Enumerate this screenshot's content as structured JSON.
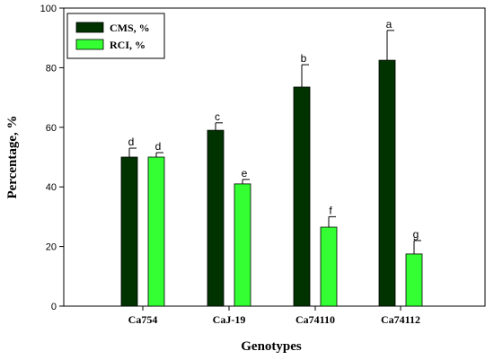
{
  "chart_data": {
    "type": "bar",
    "xlabel": "Genotypes",
    "ylabel": "Percentage, %",
    "ylim": [
      0,
      100
    ],
    "yticks": [
      0,
      20,
      40,
      60,
      80,
      100
    ],
    "categories": [
      "Ca754",
      "CaJ-19",
      "Ca74110",
      "Ca74112"
    ],
    "series": [
      {
        "name": "CMS, %",
        "color": "#003300",
        "values": [
          50,
          59,
          73.5,
          82.5
        ],
        "errors": [
          3,
          2.5,
          7.5,
          10
        ],
        "labels": [
          "d",
          "c",
          "b",
          "a"
        ]
      },
      {
        "name": "RCI, %",
        "color": "#33ff33",
        "values": [
          50,
          41,
          26.5,
          17.5
        ],
        "errors": [
          1.5,
          1.5,
          3.5,
          4.5
        ],
        "labels": [
          "d",
          "e",
          "f",
          "g"
        ]
      }
    ],
    "grid": false,
    "legend_position": "top-left"
  }
}
